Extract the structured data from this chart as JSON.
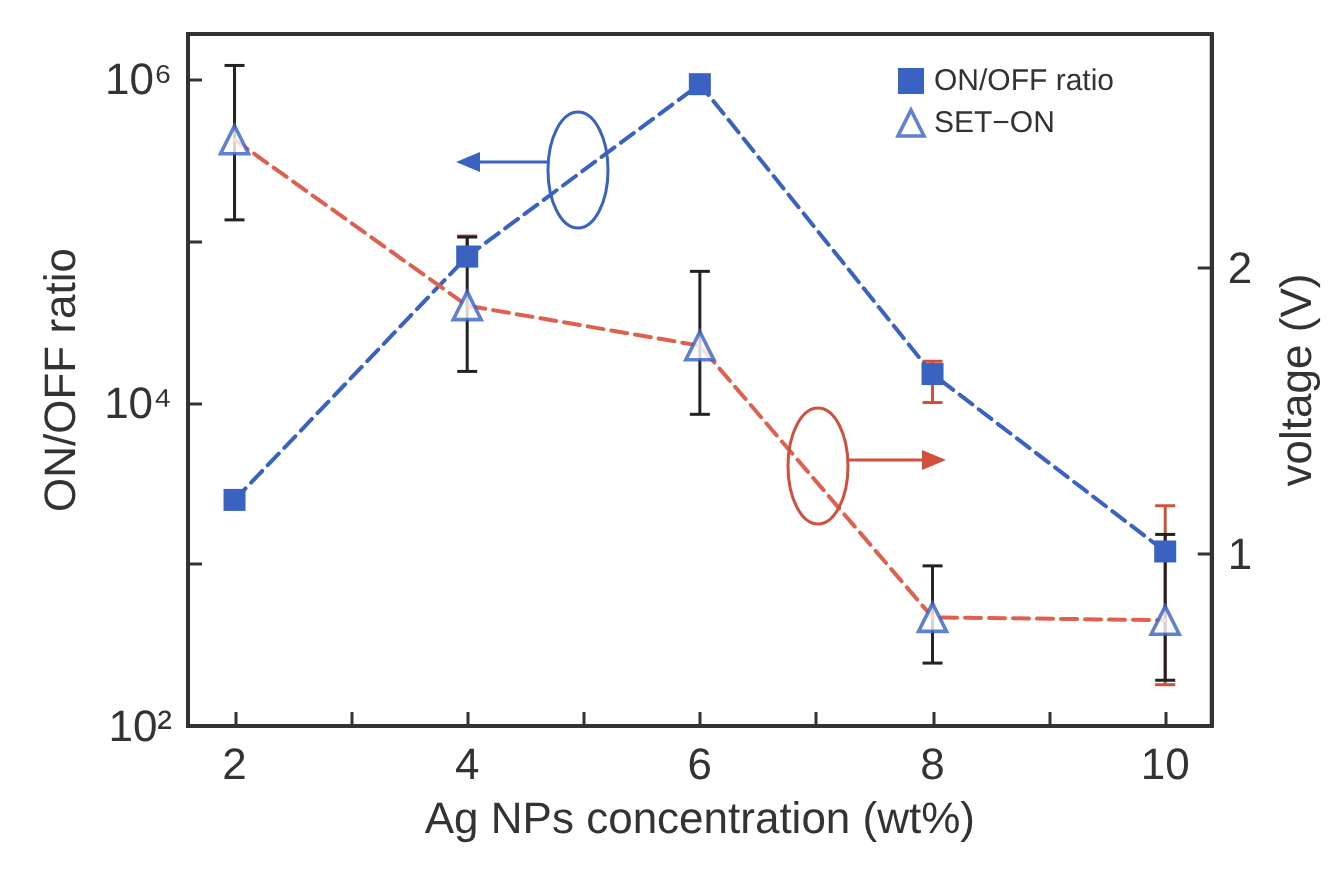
{
  "chart_data": {
    "type": "line",
    "xlabel": "Ag NPs concentration (wt%)",
    "ylabel": "ON/OFF ratio",
    "y2label": "voltage (V)",
    "x": [
      2,
      4,
      6,
      8,
      10
    ],
    "xlim": [
      1.6,
      10.4
    ],
    "xticks": [
      2,
      {
        "value": 3,
        "label": null
      },
      4,
      {
        "value": 5,
        "label": null
      },
      6,
      {
        "value": 7,
        "label": null
      },
      8,
      {
        "value": 9,
        "label": null
      },
      10
    ],
    "ylim": [
      100,
      1900000
    ],
    "yticks": [
      {
        "value": 100,
        "label": "10²"
      },
      {
        "value": 1000,
        "label": null
      },
      {
        "value": 10000,
        "label": "10⁴"
      },
      {
        "value": 100000,
        "label": null
      },
      {
        "value": 1000000,
        "label": "10⁶"
      }
    ],
    "y2lim": [
      0.4,
      2.82
    ],
    "y2ticks": [
      1,
      2
    ],
    "log": "y",
    "grid": false,
    "legend": "top right",
    "line_style": "dashed",
    "series": [
      {
        "name": "ON/OFF ratio",
        "color": "#3a62c0",
        "marker": "square",
        "values": [
          2500,
          80000,
          930000,
          15000,
          1200
        ],
        "errors": [
          null,
          [
            70000,
            107000
          ],
          null,
          [
            10000,
            18000
          ],
          [
            180,
            2300
          ]
        ]
      },
      {
        "color": "#e06050",
        "marker": "none",
        "axis": "y2",
        "values": [
          2.45,
          1.87,
          1.73,
          0.78,
          0.77
        ]
      },
      {
        "name": "SET−ON",
        "type": "scatter",
        "color": "#3a62c0",
        "marker": "triangle",
        "axis": "y2",
        "values": [
          2.45,
          1.87,
          1.73,
          0.78,
          0.77
        ],
        "errors": [
          [
            2.17,
            2.71
          ],
          [
            1.64,
            2.11
          ],
          [
            1.49,
            1.99
          ],
          [
            0.62,
            0.96
          ],
          [
            0.56,
            1.07
          ]
        ]
      }
    ]
  }
}
